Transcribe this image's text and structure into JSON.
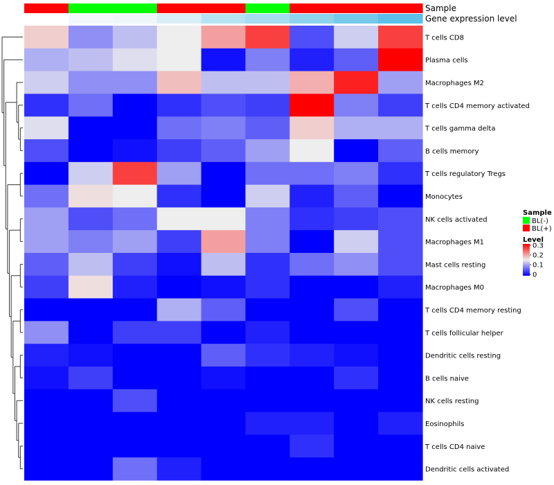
{
  "chart_data": {
    "type": "heatmap",
    "title": "",
    "annotation_rows": [
      {
        "name": "Sample",
        "legend_title": "Sample",
        "legend": [
          {
            "label": "BL(-)",
            "color": "#00ff00"
          },
          {
            "label": "BL(+)",
            "color": "#ff0000"
          }
        ],
        "values": [
          "BL(+)",
          "BL(-)",
          "BL(-)",
          "BL(+)",
          "BL(+)",
          "BL(-)",
          "BL(+)",
          "BL(+)",
          "BL(+)"
        ]
      },
      {
        "name": "Gene expression level",
        "colors": [
          "#ffffff",
          "#f2f8fb",
          "#eef6fa",
          "#d9eef7",
          "#b7e2f2",
          "#a5dcef",
          "#8dd3ec",
          "#75c9ea",
          "#5cc0e8"
        ]
      }
    ],
    "color_scale": {
      "title": "Level",
      "min": 0,
      "mid": 0.15,
      "max": 0.3,
      "ticks": [
        "0.3",
        "0.2",
        "0.1",
        "0"
      ],
      "colors": [
        "#0000ff",
        "#eeeeee",
        "#ff0000"
      ]
    },
    "rows": [
      "T cells CD8",
      "Plasma cells",
      "Macrophages M2",
      "T cells CD4 memory activated",
      "T cells gamma delta",
      "B cells memory",
      "T cells regulatory  Tregs",
      "Monocytes",
      "NK cells activated",
      "Macrophages M1",
      "Mast cells resting",
      "Macrophages M0",
      "T cells CD4 memory resting",
      "T cells follicular helper",
      "Dendritic cells resting",
      "B cells naive",
      "NK cells resting",
      "Eosinophils",
      "T cells CD4 naive",
      "Dendritic cells activated"
    ],
    "values": [
      [
        0.17,
        0.09,
        0.12,
        0.15,
        0.2,
        0.26,
        0.05,
        0.13,
        0.26
      ],
      [
        0.11,
        0.12,
        0.14,
        0.15,
        0.01,
        0.08,
        0.02,
        0.06,
        0.3
      ],
      [
        0.13,
        0.09,
        0.09,
        0.18,
        0.12,
        0.12,
        0.19,
        0.28,
        0.1
      ],
      [
        0.03,
        0.07,
        0.0,
        0.03,
        0.05,
        0.04,
        0.3,
        0.08,
        0.04
      ],
      [
        0.14,
        0.0,
        0.0,
        0.07,
        0.08,
        0.06,
        0.17,
        0.11,
        0.11
      ],
      [
        0.05,
        0.0,
        0.01,
        0.04,
        0.06,
        0.1,
        0.15,
        0.0,
        0.06
      ],
      [
        0.0,
        0.13,
        0.26,
        0.1,
        0.0,
        0.07,
        0.07,
        0.08,
        0.03
      ],
      [
        0.07,
        0.16,
        0.15,
        0.03,
        0.0,
        0.13,
        0.02,
        0.06,
        0.0
      ],
      [
        0.1,
        0.05,
        0.07,
        0.15,
        0.15,
        0.08,
        0.03,
        0.04,
        0.05
      ],
      [
        0.1,
        0.08,
        0.1,
        0.04,
        0.2,
        0.08,
        0.0,
        0.13,
        0.05
      ],
      [
        0.06,
        0.12,
        0.04,
        0.01,
        0.12,
        0.03,
        0.07,
        0.09,
        0.05
      ],
      [
        0.04,
        0.16,
        0.02,
        0.0,
        0.01,
        0.03,
        0.0,
        0.0,
        0.02
      ],
      [
        0.0,
        0.0,
        0.0,
        0.11,
        0.06,
        0.0,
        0.0,
        0.05,
        0.0
      ],
      [
        0.09,
        0.0,
        0.04,
        0.04,
        0.0,
        0.02,
        0.0,
        0.0,
        0.0
      ],
      [
        0.02,
        0.01,
        0.0,
        0.0,
        0.06,
        0.03,
        0.02,
        0.01,
        0.0
      ],
      [
        0.01,
        0.04,
        0.0,
        0.0,
        0.01,
        0.0,
        0.0,
        0.03,
        0.0
      ],
      [
        0.0,
        0.0,
        0.05,
        0.0,
        0.0,
        0.0,
        0.0,
        0.0,
        0.0
      ],
      [
        0.0,
        0.0,
        0.0,
        0.0,
        0.0,
        0.02,
        0.02,
        0.0,
        0.02
      ],
      [
        0.0,
        0.0,
        0.0,
        0.0,
        0.0,
        0.0,
        0.03,
        0.0,
        0.0
      ],
      [
        0.0,
        0.0,
        0.07,
        0.02,
        0.0,
        0.0,
        0.0,
        0.0,
        0.0
      ]
    ]
  }
}
